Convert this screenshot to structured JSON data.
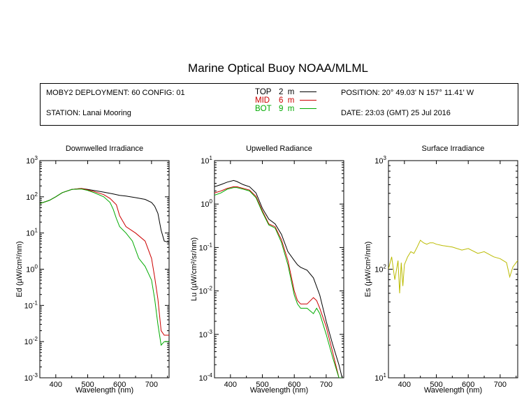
{
  "title": "Marine Optical Buoy NOAA/MLML",
  "info": {
    "deployment": "MOBY2 DEPLOYMENT: 60 CONFIG: 01",
    "station": "STATION: Lanai Mooring",
    "position": "POSITION: 20° 49.03' N  157° 11.41' W",
    "date": "DATE: 23:03 (GMT) 25 Jul 2016",
    "legend": [
      {
        "label": "TOP",
        "depth": "2",
        "unit": "m",
        "color": "#000000"
      },
      {
        "label": "MID",
        "depth": "6",
        "unit": "m",
        "color": "#cc0000"
      },
      {
        "label": "BOT",
        "depth": "9",
        "unit": "m",
        "color": "#00aa00"
      }
    ]
  },
  "colors": {
    "top": "#000000",
    "mid": "#cc0000",
    "bot": "#00aa00",
    "surface": "#bbbb00"
  },
  "chart_data": [
    {
      "type": "line",
      "title": "Downwelled Irradiance",
      "xlabel": "Wavelength (nm)",
      "ylabel": "Ed  (µW/cm²/nm)",
      "xlim": [
        350,
        755
      ],
      "ylim": [
        0.001,
        1000
      ],
      "yscale": "log",
      "xticks": [
        400,
        500,
        600,
        700
      ],
      "yticks": [
        {
          "base": "10",
          "exp": "-3"
        },
        {
          "base": "10",
          "exp": "-2"
        },
        {
          "base": "10",
          "exp": "-1"
        },
        {
          "base": "10",
          "exp": "0"
        },
        {
          "base": "10",
          "exp": "1"
        },
        {
          "base": "10",
          "exp": "2"
        },
        {
          "base": "10",
          "exp": "3"
        }
      ],
      "series": [
        {
          "name": "TOP",
          "color": "#000000",
          "x": [
            350,
            380,
            400,
            420,
            450,
            480,
            500,
            520,
            550,
            580,
            600,
            620,
            650,
            680,
            700,
            710,
            720,
            730,
            740,
            755
          ],
          "y": [
            65,
            80,
            100,
            130,
            160,
            170,
            160,
            150,
            135,
            120,
            110,
            105,
            95,
            85,
            70,
            55,
            35,
            12,
            6,
            5.5
          ]
        },
        {
          "name": "MID",
          "color": "#cc0000",
          "x": [
            350,
            380,
            400,
            420,
            450,
            480,
            500,
            520,
            550,
            570,
            590,
            600,
            620,
            650,
            680,
            700,
            710,
            720,
            730,
            740,
            755
          ],
          "y": [
            65,
            80,
            100,
            130,
            160,
            170,
            155,
            140,
            115,
            90,
            60,
            30,
            15,
            10,
            6,
            2,
            0.6,
            0.15,
            0.02,
            0.015,
            0.015
          ]
        },
        {
          "name": "BOT",
          "color": "#00aa00",
          "x": [
            350,
            380,
            400,
            420,
            450,
            480,
            500,
            520,
            550,
            570,
            580,
            590,
            600,
            620,
            640,
            660,
            680,
            700,
            710,
            720,
            730,
            740,
            755
          ],
          "y": [
            65,
            80,
            100,
            130,
            160,
            165,
            150,
            130,
            100,
            70,
            45,
            25,
            15,
            10,
            6,
            2,
            1.2,
            0.5,
            0.15,
            0.03,
            0.008,
            0.01,
            0.01
          ]
        }
      ]
    },
    {
      "type": "line",
      "title": "Upwelled Radiance",
      "xlabel": "Wavelength (nm)",
      "ylabel": "Lu  (µW/cm²/sr/nm)",
      "xlim": [
        350,
        755
      ],
      "ylim": [
        0.0001,
        10
      ],
      "yscale": "log",
      "xticks": [
        400,
        500,
        600,
        700
      ],
      "yticks": [
        {
          "base": "10",
          "exp": "-4"
        },
        {
          "base": "10",
          "exp": "-3"
        },
        {
          "base": "10",
          "exp": "-2"
        },
        {
          "base": "10",
          "exp": "-1"
        },
        {
          "base": "10",
          "exp": "0"
        },
        {
          "base": "10",
          "exp": "1"
        }
      ],
      "series": [
        {
          "name": "TOP",
          "color": "#000000",
          "x": [
            350,
            370,
            390,
            410,
            420,
            440,
            460,
            480,
            500,
            520,
            540,
            560,
            580,
            600,
            610,
            620,
            640,
            660,
            680,
            700,
            720,
            740,
            750
          ],
          "y": [
            2.5,
            2.8,
            3.2,
            3.5,
            3.3,
            2.8,
            2.5,
            1.8,
            0.8,
            0.45,
            0.35,
            0.2,
            0.08,
            0.05,
            0.04,
            0.035,
            0.03,
            0.02,
            0.008,
            0.002,
            0.0006,
            0.0002,
            0.0001
          ]
        },
        {
          "name": "MID",
          "color": "#cc0000",
          "x": [
            350,
            370,
            390,
            410,
            420,
            440,
            460,
            480,
            500,
            520,
            540,
            560,
            580,
            600,
            610,
            620,
            640,
            660,
            670,
            680,
            700,
            720,
            740,
            750
          ],
          "y": [
            1.8,
            2.0,
            2.3,
            2.5,
            2.5,
            2.3,
            2.1,
            1.5,
            0.7,
            0.35,
            0.3,
            0.15,
            0.05,
            0.01,
            0.006,
            0.005,
            0.005,
            0.007,
            0.006,
            0.004,
            0.0015,
            0.0004,
            0.0001,
            0.0001
          ]
        },
        {
          "name": "BOT",
          "color": "#00aa00",
          "x": [
            350,
            370,
            390,
            410,
            420,
            440,
            460,
            480,
            500,
            520,
            540,
            560,
            580,
            600,
            610,
            620,
            640,
            660,
            670,
            680,
            700,
            720,
            740,
            750
          ],
          "y": [
            1.6,
            1.8,
            2.2,
            2.4,
            2.4,
            2.2,
            2.0,
            1.4,
            0.65,
            0.33,
            0.28,
            0.13,
            0.04,
            0.008,
            0.005,
            0.004,
            0.004,
            0.003,
            0.004,
            0.003,
            0.001,
            0.0003,
            0.0001,
            0.0001
          ]
        }
      ]
    },
    {
      "type": "line",
      "title": "Surface Irradiance",
      "xlabel": "Wavelength (nm)",
      "ylabel": "Es  (µW/cm²/nm)",
      "xlim": [
        350,
        755
      ],
      "ylim": [
        10,
        1000
      ],
      "yscale": "log",
      "xticks": [
        400,
        500,
        600,
        700
      ],
      "yticks": [
        {
          "base": "10",
          "exp": "1"
        },
        {
          "base": "10",
          "exp": "2"
        },
        {
          "base": "10",
          "exp": "3"
        }
      ],
      "series": [
        {
          "name": "Surface",
          "color": "#bbbb00",
          "x": [
            350,
            360,
            370,
            380,
            385,
            390,
            395,
            400,
            410,
            420,
            430,
            440,
            450,
            460,
            470,
            480,
            490,
            500,
            520,
            550,
            580,
            600,
            630,
            650,
            680,
            700,
            720,
            730,
            740,
            750,
            755
          ],
          "y": [
            100,
            130,
            80,
            120,
            60,
            115,
            70,
            110,
            130,
            145,
            140,
            160,
            185,
            175,
            170,
            175,
            175,
            170,
            165,
            160,
            150,
            155,
            140,
            145,
            130,
            125,
            115,
            85,
            105,
            115,
            120
          ]
        }
      ]
    }
  ]
}
